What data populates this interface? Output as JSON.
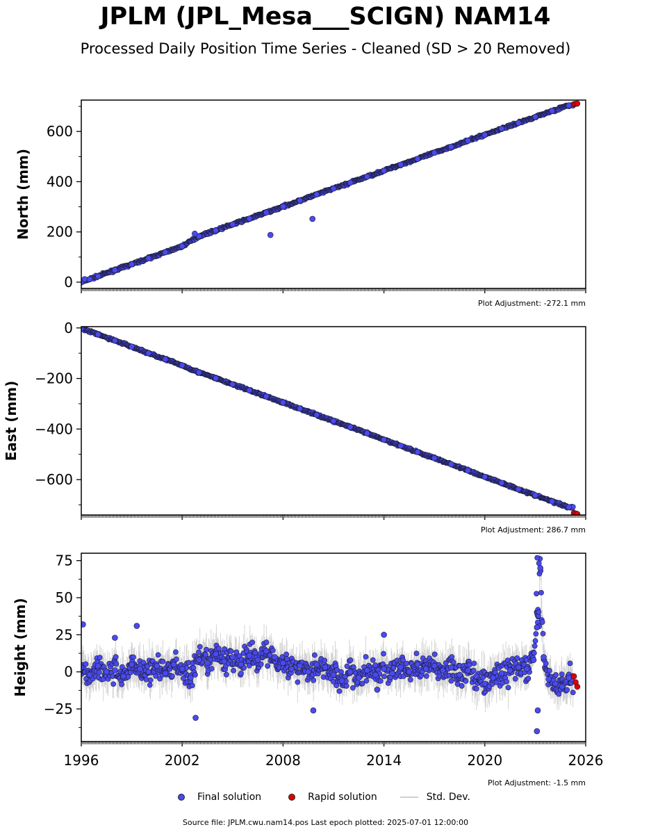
{
  "header": {
    "title": "JPLM (JPL_Mesa___SCIGN) NAM14",
    "subtitle": "Processed Daily Position Time Series - Cleaned (SD > 20 Removed)"
  },
  "legend": {
    "final_label": "Final solution",
    "rapid_label": "Rapid solution",
    "std_label": "Std. Dev."
  },
  "footer": {
    "source": "Source file: JPLM.cwu.nam14.pos  Last epoch plotted: 2025-07-01 12:00:00"
  },
  "colors": {
    "final": "#4a4af0",
    "rapid": "#e00000",
    "std": "#c8c8c8",
    "marker_edge": "#1a1a2e"
  },
  "chart_data": [
    {
      "type": "scatter",
      "panel": "north",
      "ylabel": "North (mm)",
      "adjustment": "Plot Adjustment: -272.1 mm",
      "xlim": [
        1996,
        2026
      ],
      "ylim": [
        -25,
        725
      ],
      "yticks": [
        0,
        200,
        400,
        600
      ],
      "ytick_labels": [
        "0",
        "200",
        "400",
        "600"
      ],
      "series": [
        {
          "name": "Final solution",
          "x": [
            1996.0,
            1996.5,
            1997.0,
            1998.0,
            1999.0,
            2000.0,
            2001.0,
            2002.0,
            2003.0,
            2004.0,
            2005.0,
            2006.0,
            2007.0,
            2008.0,
            2009.0,
            2010.0,
            2011.0,
            2012.0,
            2013.0,
            2014.0,
            2015.0,
            2016.0,
            2017.0,
            2018.0,
            2019.0,
            2020.0,
            2021.0,
            2022.0,
            2023.0,
            2024.0,
            2025.0
          ],
          "y": [
            0,
            12,
            24,
            48,
            71,
            95,
            119,
            143,
            183,
            206,
            230,
            253,
            277,
            301,
            325,
            349,
            373,
            396,
            420,
            444,
            468,
            491,
            515,
            539,
            563,
            587,
            611,
            634,
            658,
            682,
            704
          ]
        },
        {
          "name": "Outliers",
          "x": [
            2007.25,
            2009.75,
            2002.75,
            1996.2
          ],
          "y": [
            188,
            252,
            193,
            12
          ]
        },
        {
          "name": "Rapid solution",
          "x": [
            2025.3,
            2025.4,
            2025.5
          ],
          "y": [
            709,
            710,
            711
          ]
        }
      ]
    },
    {
      "type": "scatter",
      "panel": "east",
      "ylabel": "East (mm)",
      "adjustment": "Plot Adjustment: 286.7 mm",
      "xlim": [
        1996,
        2026
      ],
      "ylim": [
        -740,
        5
      ],
      "yticks": [
        0,
        -200,
        -400,
        -600
      ],
      "ytick_labels": [
        "0",
        "−200",
        "−400",
        "−600"
      ],
      "series": [
        {
          "name": "Final solution",
          "x": [
            1996.0,
            1997.0,
            1998.0,
            1999.0,
            2000.0,
            2001.0,
            2002.0,
            2003.0,
            2004.0,
            2005.0,
            2006.0,
            2007.0,
            2008.0,
            2009.0,
            2010.0,
            2011.0,
            2012.0,
            2013.0,
            2014.0,
            2015.0,
            2016.0,
            2017.0,
            2018.0,
            2019.0,
            2020.0,
            2021.0,
            2022.0,
            2023.0,
            2024.0,
            2025.0
          ],
          "y": [
            -2,
            -26,
            -50,
            -74,
            -100,
            -124,
            -148,
            -176,
            -199,
            -223,
            -247,
            -271,
            -295,
            -319,
            -344,
            -368,
            -392,
            -417,
            -442,
            -466,
            -491,
            -515,
            -539,
            -564,
            -589,
            -613,
            -638,
            -662,
            -686,
            -709
          ]
        },
        {
          "name": "Rapid solution",
          "x": [
            2025.3,
            2025.4,
            2025.5
          ],
          "y": [
            -732,
            -734,
            -736
          ]
        }
      ]
    },
    {
      "type": "scatter",
      "panel": "height",
      "ylabel": "Height (mm)",
      "adjustment": "Plot Adjustment: -1.5 mm",
      "xlim": [
        1996,
        2026
      ],
      "ylim": [
        -47,
        80
      ],
      "yticks": [
        -25,
        0,
        25,
        50,
        75
      ],
      "ytick_labels": [
        "−25",
        "0",
        "25",
        "50",
        "75"
      ],
      "xticks": [
        1996,
        2002,
        2008,
        2014,
        2020,
        2026
      ],
      "xtick_labels": [
        "1996",
        "2002",
        "2008",
        "2014",
        "2020",
        "2026"
      ],
      "series": [
        {
          "name": "Final solution",
          "x": [
            1996.0,
            1996.5,
            1997.0,
            1997.5,
            1998.0,
            1998.5,
            1999.0,
            1999.5,
            2000.0,
            2000.5,
            2001.0,
            2001.5,
            2002.0,
            2002.5,
            2003.0,
            2003.5,
            2004.0,
            2004.5,
            2005.0,
            2005.5,
            2006.0,
            2006.5,
            2007.0,
            2007.5,
            2008.0,
            2008.5,
            2009.0,
            2009.5,
            2010.0,
            2010.5,
            2011.0,
            2011.5,
            2012.0,
            2012.5,
            2013.0,
            2013.5,
            2014.0,
            2014.5,
            2015.0,
            2015.5,
            2016.0,
            2016.5,
            2017.0,
            2017.5,
            2018.0,
            2018.5,
            2019.0,
            2019.5,
            2020.0,
            2020.5,
            2021.0,
            2021.5,
            2022.0,
            2022.5,
            2022.9,
            2023.1,
            2023.3,
            2023.5,
            2023.8,
            2024.2,
            2024.6,
            2025.0
          ],
          "y": [
            3,
            -2,
            4,
            0,
            1,
            -3,
            5,
            2,
            0,
            4,
            -1,
            5,
            2,
            -4,
            8,
            6,
            12,
            7,
            10,
            5,
            11,
            8,
            14,
            10,
            6,
            2,
            4,
            0,
            5,
            3,
            -2,
            -6,
            0,
            -4,
            1,
            -2,
            2,
            -1,
            3,
            0,
            5,
            2,
            4,
            1,
            3,
            -2,
            1,
            -3,
            -8,
            -4,
            -1,
            1,
            3,
            2,
            8,
            30,
            70,
            10,
            -5,
            -8,
            -10,
            -4
          ]
        },
        {
          "name": "Outliers",
          "x": [
            1996.1,
            1999.3,
            1998.0,
            2002.8,
            2009.8,
            2014.0,
            2013.6,
            2023.1,
            2023.15
          ],
          "y": [
            32,
            31,
            23,
            -31,
            -26,
            25,
            -12,
            -40,
            -26
          ]
        },
        {
          "name": "Rapid solution",
          "x": [
            2025.3,
            2025.4,
            2025.5
          ],
          "y": [
            -3,
            -7,
            -10
          ]
        }
      ]
    }
  ]
}
